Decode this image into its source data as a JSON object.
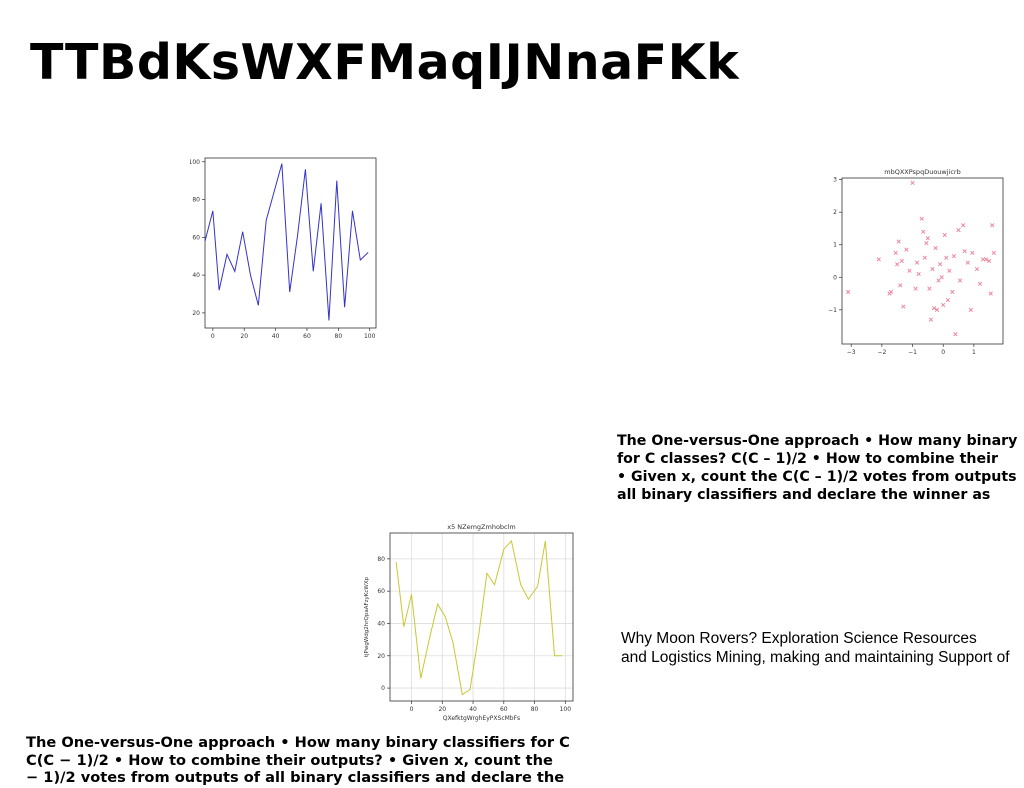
{
  "slide": {
    "title": "TTBdKsWXFMaqIJNnaFKk",
    "text_a": [
      "The One-versus-One approach • How many binary",
      "for C classes? C(C – 1)/2 • How to combine their",
      "• Given x, count the C(C – 1)/2 votes from outputs",
      "all binary classifiers and declare the winner as"
    ],
    "text_b": [
      "Why Moon Rovers? Exploration Science Resources",
      "and Logistics Mining, making and maintaining Support of"
    ],
    "text_c": [
      "The One-versus-One approach • How many binary classifiers for C",
      "C(C − 1)/2 • How to combine their outputs? • Given x, count the",
      "− 1)/2 votes from outputs of all binary classifiers and declare the"
    ]
  },
  "chart_data": [
    {
      "type": "line",
      "title": "",
      "xlabel": "",
      "ylabel": "",
      "color": "#3333cc",
      "grid": false,
      "xlim": [
        -5,
        104
      ],
      "ylim": [
        12,
        102
      ],
      "xticks": [
        0,
        20,
        40,
        60,
        80,
        100
      ],
      "yticks": [
        20,
        40,
        60,
        80,
        100
      ],
      "series": [
        {
          "x": [
            -5,
            0,
            4,
            9,
            14,
            19,
            24,
            29,
            34,
            39,
            44,
            49,
            54,
            59,
            64,
            69,
            74,
            79,
            84,
            89,
            94,
            99
          ],
          "values": [
            58,
            74,
            32,
            51,
            42,
            63,
            40,
            24,
            69,
            84,
            99,
            31,
            61,
            96,
            42,
            78,
            16,
            90,
            23,
            74,
            48,
            52
          ]
        }
      ]
    },
    {
      "type": "scatter",
      "title": "mbQXXPspqDuouwjicrb",
      "xlabel": "",
      "ylabel": "",
      "color": "#ee7f9a",
      "marker": "x",
      "grid": false,
      "xlim": [
        -3.3,
        1.95
      ],
      "ylim": [
        -2.05,
        3.05
      ],
      "xticks": [
        -3,
        -2,
        -1,
        0,
        1
      ],
      "yticks": [
        -1,
        0,
        1,
        2,
        3
      ],
      "series": [
        {
          "x": [
            -3.1,
            -2.1,
            -1.75,
            -1.7,
            -1.55,
            -1.5,
            -1.45,
            -1.4,
            -1.35,
            -1.3,
            -1.2,
            -1.1,
            -1.0,
            -0.9,
            -0.85,
            -0.8,
            -0.7,
            -0.65,
            -0.6,
            -0.55,
            -0.5,
            -0.45,
            -0.4,
            -0.35,
            -0.3,
            -0.25,
            -0.2,
            -0.15,
            -0.1,
            -0.05,
            0.0,
            0.05,
            0.1,
            0.15,
            0.2,
            0.3,
            0.35,
            0.4,
            0.5,
            0.55,
            0.65,
            0.7,
            0.8,
            0.9,
            0.95,
            1.1,
            1.2,
            1.3,
            1.4,
            1.5,
            1.55,
            1.6,
            1.65
          ],
          "y": [
            -0.45,
            0.55,
            -0.5,
            -0.45,
            0.75,
            0.4,
            1.1,
            -0.25,
            0.5,
            -0.9,
            0.85,
            0.2,
            2.9,
            -0.35,
            0.45,
            0.1,
            1.8,
            1.4,
            0.6,
            1.05,
            1.2,
            -0.35,
            -1.3,
            0.25,
            -0.95,
            0.9,
            -1.0,
            -0.1,
            0.4,
            0.0,
            -0.85,
            1.3,
            0.6,
            -0.7,
            0.2,
            -0.45,
            0.65,
            -1.75,
            1.45,
            -0.1,
            1.6,
            0.8,
            0.45,
            -1.0,
            0.75,
            0.25,
            -0.2,
            0.55,
            0.55,
            0.5,
            -0.5,
            1.6,
            0.75
          ]
        }
      ]
    },
    {
      "type": "line",
      "title": "x5 NZemgZmhobclm",
      "xlabel": "QXefktgWrghEyPXScMbFs",
      "ylabel": "tjPwgWdg2hrQpaAFzyKcWXp",
      "color": "#c8c832",
      "grid": true,
      "xlim": [
        -14,
        105
      ],
      "ylim": [
        -8,
        96
      ],
      "xticks": [
        0,
        20,
        40,
        60,
        80,
        100
      ],
      "yticks": [
        0,
        20,
        40,
        60,
        80
      ],
      "series": [
        {
          "x": [
            -10,
            -5,
            0,
            6,
            11,
            17,
            22,
            27,
            33,
            38,
            44,
            49,
            54,
            60,
            65,
            71,
            76,
            82,
            87,
            93,
            98
          ],
          "values": [
            78,
            38,
            58,
            6,
            28,
            52,
            44,
            28,
            -4,
            -1,
            35,
            71,
            64,
            86,
            91,
            64,
            55,
            63,
            91,
            20,
            20
          ]
        }
      ]
    }
  ]
}
